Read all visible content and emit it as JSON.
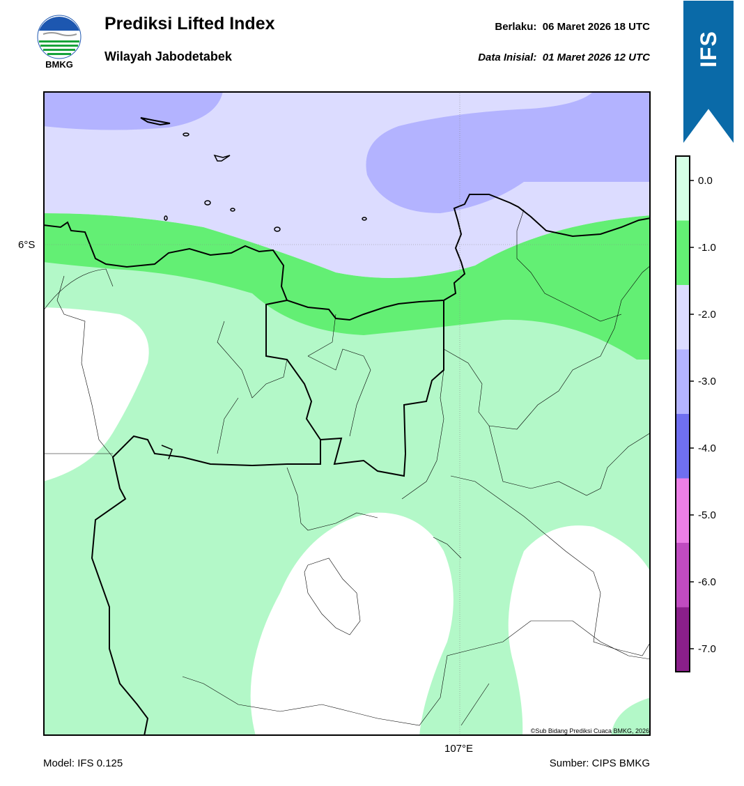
{
  "header": {
    "title": "Prediksi Lifted Index",
    "subtitle": "Wilayah Jabodetabek",
    "valid_label": "Berlaku:",
    "valid_time": "06 Maret 2026 18 UTC",
    "init_label": "Data Inisial:",
    "init_time": "01 Maret 2026 12 UTC"
  },
  "logo": {
    "text": "BMKG",
    "icon": "bmkg-logo-icon"
  },
  "banner": {
    "text": "IFS",
    "color": "#0a6aa8"
  },
  "map": {
    "lat_label": "6°S",
    "lon_label": "107°E",
    "copyright": "©Sub Bidang Prediksi Cuaca BMKG, 2026",
    "fill_colors": {
      "gt0": "#ffffff",
      "0_to_-1": "#b3f8c8",
      "-1_to_-2": "#63ef74",
      "-2_to_-3": "#dcdcff",
      "-3_to_-4": "#b3b3ff"
    }
  },
  "colorbar": {
    "ticks": [
      "0.0",
      "-1.0",
      "-2.0",
      "-3.0",
      "-4.0",
      "-5.0",
      "-6.0",
      "-7.0"
    ],
    "colors": [
      "#d6ffe6",
      "#63ef74",
      "#dcdcff",
      "#b3b3ff",
      "#6f6ff0",
      "#ec7fe6",
      "#c04bc0",
      "#8a1f8a"
    ]
  },
  "footer": {
    "model": "Model: IFS 0.125",
    "source": "Sumber: CIPS BMKG"
  }
}
